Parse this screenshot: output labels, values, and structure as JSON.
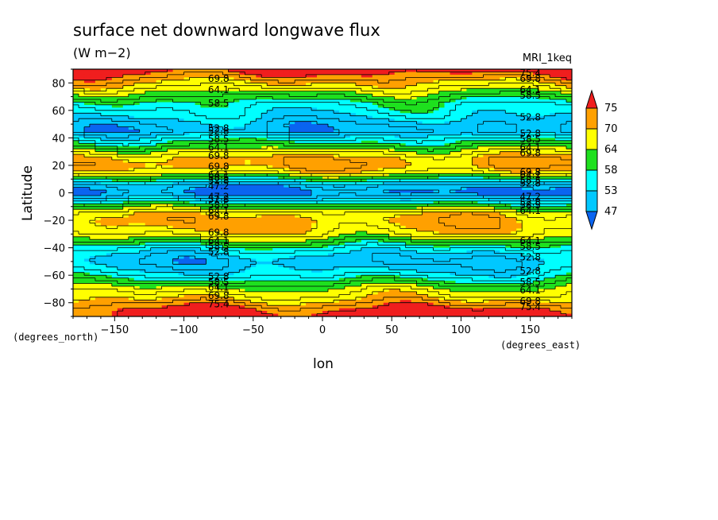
{
  "chart_data": {
    "type": "heatmap",
    "title": "surface net downward longwave flux",
    "units": "(W m−2)",
    "model": "MRI_1keq",
    "xlabel": "lon",
    "ylabel": "Latitude",
    "x_units": "(degrees_east)",
    "y_units": "(degrees_north)",
    "xlim": [
      -180,
      180
    ],
    "ylim": [
      -90,
      90
    ],
    "x_ticks": [
      -150,
      -100,
      -50,
      0,
      50,
      100,
      150
    ],
    "y_ticks": [
      -80,
      -60,
      -40,
      -20,
      0,
      20,
      40,
      60,
      80
    ],
    "colorbar": {
      "labels": [
        "47",
        "53",
        "58",
        "64",
        "70",
        "75"
      ],
      "colors": [
        "#0a64f0",
        "#00c8ff",
        "#00ffff",
        "#1ee01e",
        "#ffff00",
        "#ffa000",
        "#f01e1e"
      ]
    },
    "contour_labels": [
      "75.4",
      "69.8",
      "64.1",
      "58.5",
      "52.8",
      "47.2"
    ],
    "zonal_profile": {
      "lat": [
        -90,
        -85,
        -80,
        -75,
        -70,
        -65,
        -60,
        -55,
        -50,
        -45,
        -40,
        -35,
        -30,
        -25,
        -20,
        -15,
        -10,
        -5,
        0,
        5,
        10,
        15,
        20,
        25,
        30,
        35,
        40,
        45,
        50,
        55,
        60,
        65,
        70,
        75,
        80,
        85,
        90
      ],
      "flux": [
        78,
        76,
        72,
        68,
        65,
        60,
        55,
        52,
        50,
        52,
        56,
        62,
        68,
        70,
        71,
        69,
        62,
        53,
        46,
        49,
        58,
        68,
        72,
        71,
        66,
        60,
        55,
        49,
        50,
        53,
        55,
        57,
        61,
        66,
        70,
        74,
        78
      ]
    }
  }
}
